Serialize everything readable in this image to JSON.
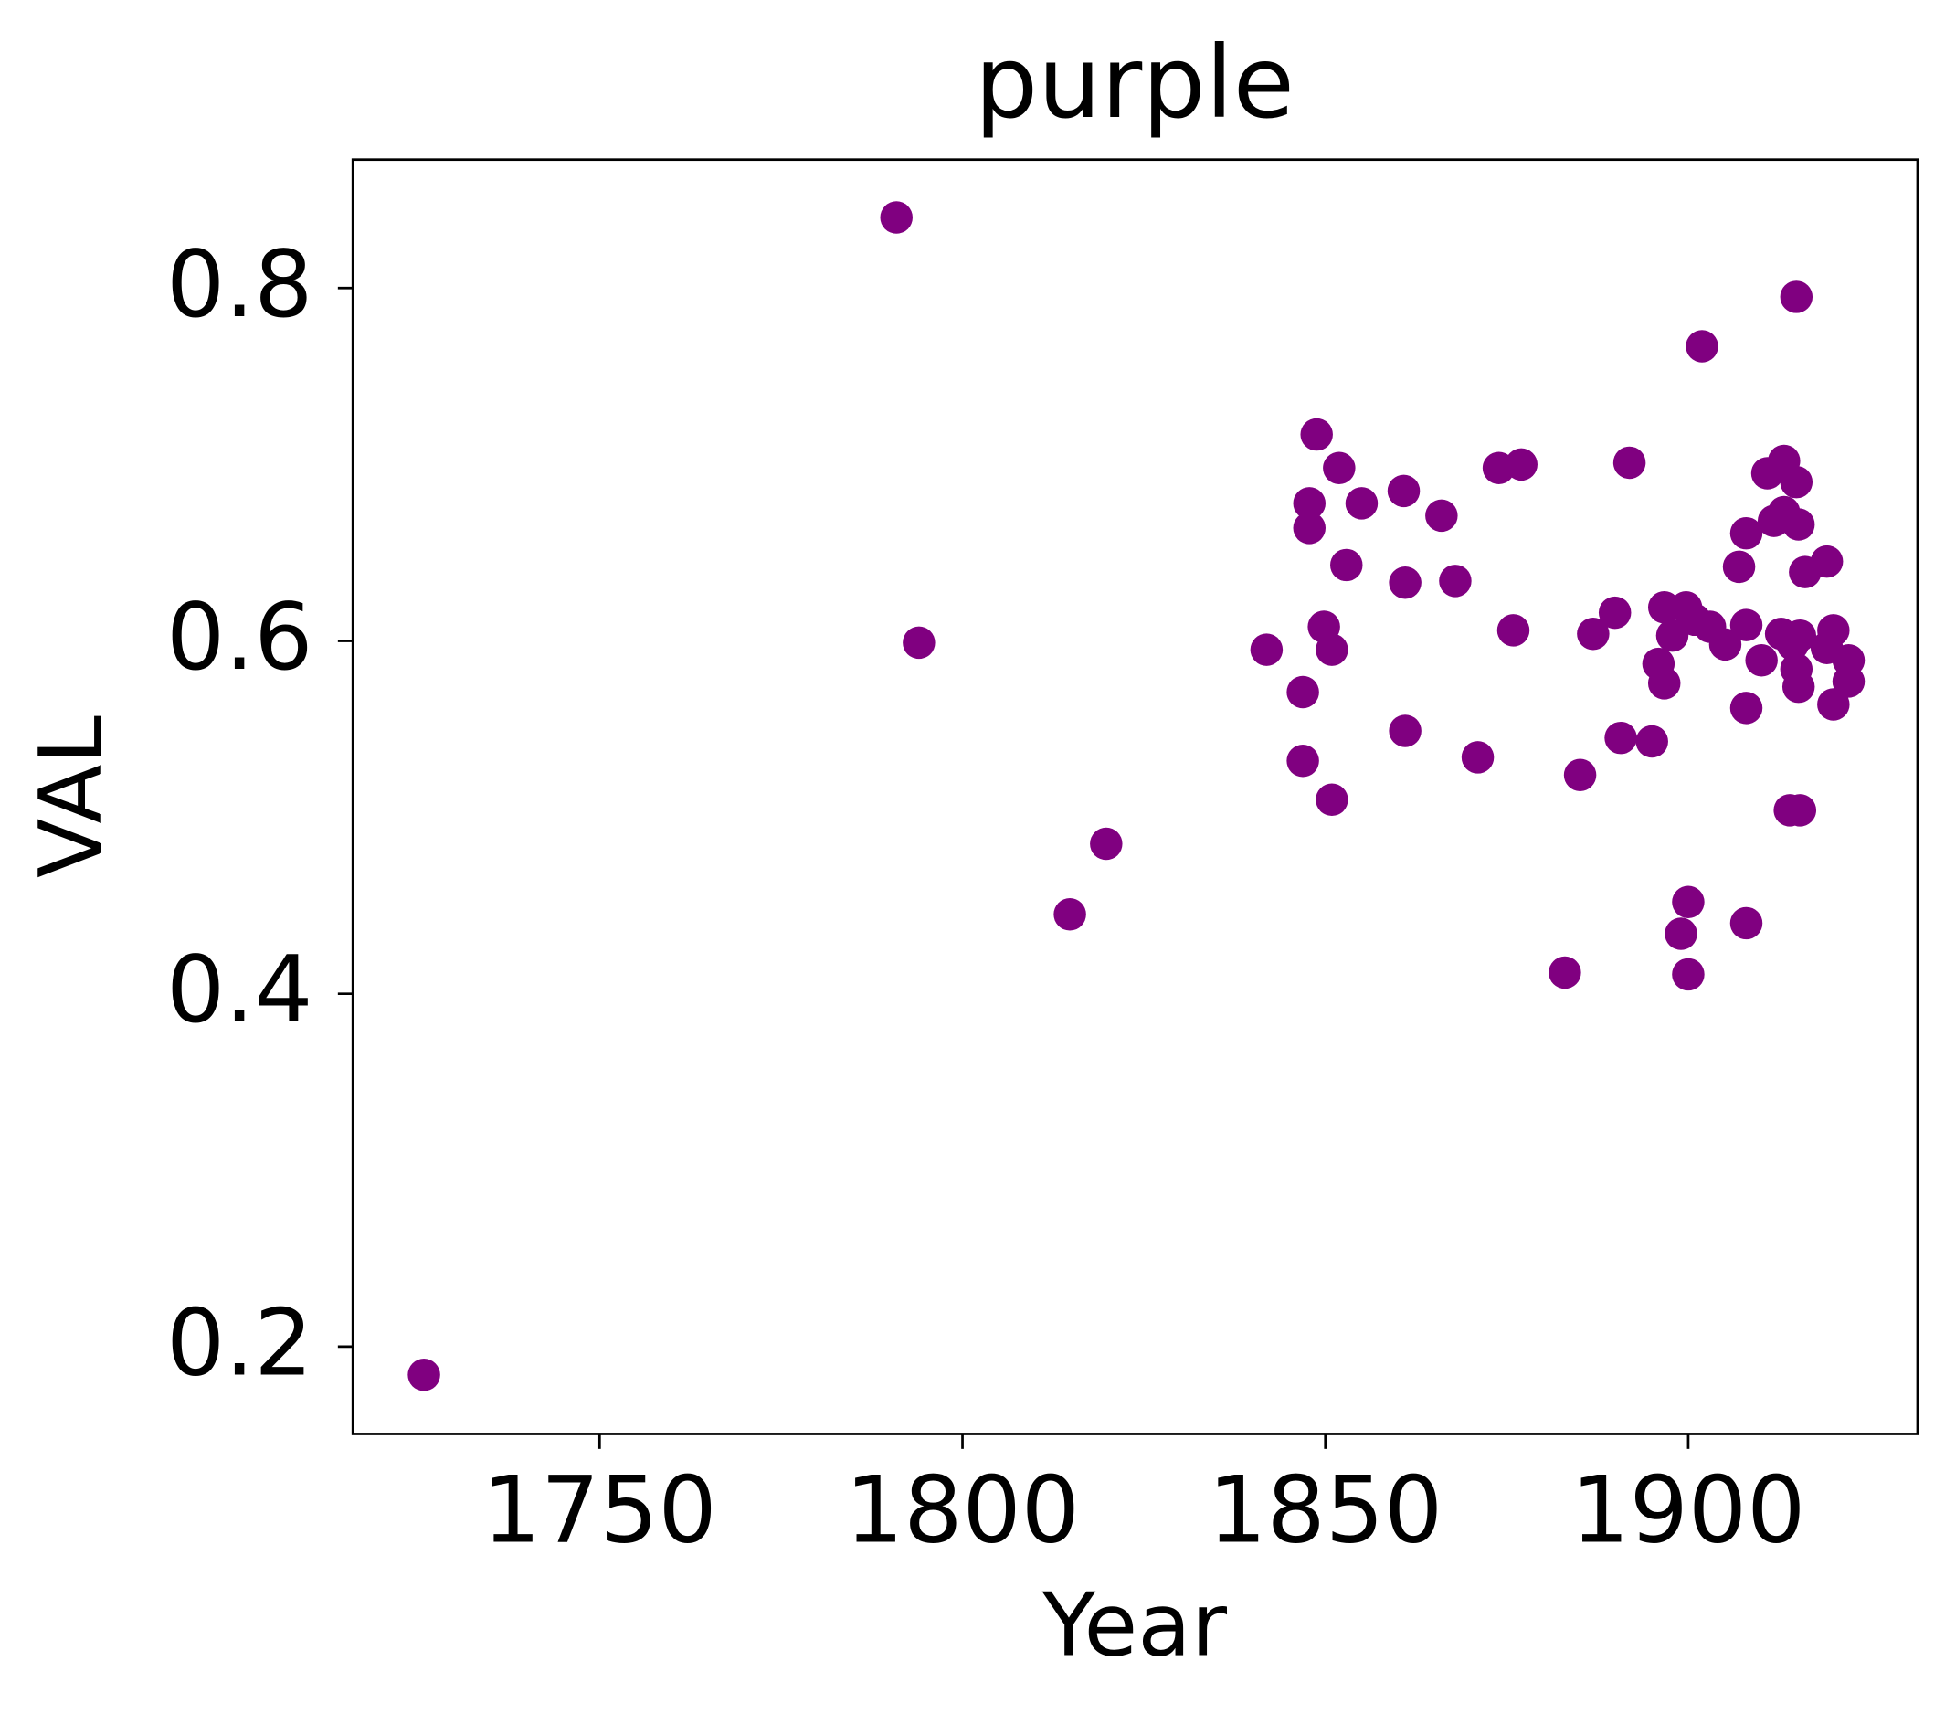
{
  "chart_data": {
    "type": "scatter",
    "title": "purple",
    "x_label": "Year",
    "y_label": "VAL",
    "series": [
      {
        "color": "#800080",
        "x": [
          1725.8,
          1790.9,
          1794.0,
          1814.8,
          1819.8,
          1841.9,
          1846.9,
          1846.9,
          1847.8,
          1847.8,
          1848.8,
          1849.8,
          1850.9,
          1850.9,
          1851.9,
          1852.9,
          1855.0,
          1860.8,
          1861.0,
          1861.0,
          1866.0,
          1867.9,
          1871.0,
          1873.9,
          1875.9,
          1877.0,
          1883.0,
          1885.1,
          1886.9,
          1889.9,
          1890.7,
          1891.9,
          1895.0,
          1895.9,
          1896.7,
          1896.7,
          1897.8,
          1899.0,
          1899.7,
          1900.0,
          1900.0,
          1900.9,
          1901.9,
          1903.0,
          1905.1,
          1907.0,
          1908.0,
          1908.0,
          1908.0,
          1908.0,
          1910.1,
          1910.9,
          1911.8,
          1912.8,
          1913.2,
          1913.2,
          1914.0,
          1914.4,
          1914.9,
          1914.9,
          1914.9,
          1915.2,
          1915.2,
          1915.4,
          1915.4,
          1916.1,
          1919.1,
          1919.1,
          1920.0,
          1920.0,
          1922.1,
          1922.1
        ],
        "values": [
          0.184,
          0.84,
          0.599,
          0.445,
          0.485,
          0.595,
          0.571,
          0.532,
          0.678,
          0.664,
          0.717,
          0.608,
          0.595,
          0.51,
          0.698,
          0.643,
          0.678,
          0.685,
          0.633,
          0.549,
          0.671,
          0.634,
          0.534,
          0.698,
          0.606,
          0.7,
          0.412,
          0.524,
          0.604,
          0.616,
          0.545,
          0.701,
          0.543,
          0.587,
          0.576,
          0.619,
          0.603,
          0.434,
          0.619,
          0.452,
          0.411,
          0.612,
          0.767,
          0.608,
          0.598,
          0.642,
          0.609,
          0.661,
          0.562,
          0.44,
          0.589,
          0.695,
          0.668,
          0.604,
          0.702,
          0.673,
          0.504,
          0.598,
          0.795,
          0.584,
          0.69,
          0.574,
          0.666,
          0.603,
          0.504,
          0.639,
          0.645,
          0.596,
          0.606,
          0.564,
          0.589,
          0.577
        ]
      }
    ],
    "xlim": [
      1716.0,
      1931.6
    ],
    "ylim": [
      0.1505,
      0.8728
    ],
    "xticks": [
      1750,
      1800,
      1850,
      1900
    ],
    "yticks": [
      0.2,
      0.4,
      0.6,
      0.8
    ]
  }
}
